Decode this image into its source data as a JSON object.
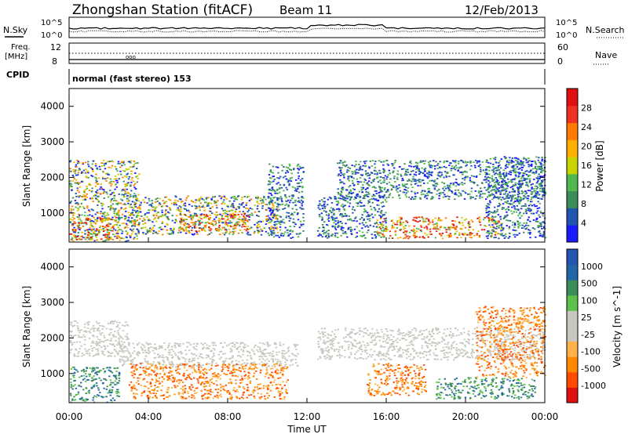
{
  "header": {
    "station": "Zhongshan Station (fitACF)",
    "beam": "Beam 11",
    "date": "12/Feb/2013"
  },
  "strips": {
    "nsky_label": "N.Sky",
    "nsearch_label": "N.Search",
    "log_top_label": "10^5",
    "log_bottom_label": "10^0",
    "freq_label_line1": "Freq.",
    "freq_label_line2": "[MHz]",
    "freq_ticks_left": [
      "12",
      "8"
    ],
    "nave_label": "Nave",
    "nave_ticks_right": [
      "60",
      "0"
    ],
    "cpid_label": "CPID",
    "cpid_value": "normal (fast stereo) 153"
  },
  "colors": {
    "power_scale": [
      "#1a1aff",
      "#2255b0",
      "#3c8c5a",
      "#4fb94f",
      "#c7d400",
      "#ffb000",
      "#ff7a00",
      "#f03020",
      "#e01010"
    ],
    "velocity_scale": [
      "#e01010",
      "#ff4a00",
      "#ff8a00",
      "#ffb24a",
      "#c8c8c0",
      "#c8c8c0",
      "#5cc24a",
      "#3c8c5a",
      "#2266aa",
      "#2255b0"
    ]
  },
  "chart_data": [
    {
      "type": "heatmap",
      "panel": "power",
      "ylabel": "Slant Range [km]",
      "xlabel": "Time UT",
      "x_ticks": [
        "00:00",
        "04:00",
        "08:00",
        "12:00",
        "16:00",
        "20:00",
        "00:00"
      ],
      "x_range_hours": [
        0,
        24
      ],
      "y_ticks": [
        "1000",
        "2000",
        "3000",
        "4000"
      ],
      "ylim": [
        180,
        4500
      ],
      "colorbar_label": "Power [dB]",
      "colorbar_ticks": [
        "4",
        "8",
        "12",
        "16",
        "20",
        "24",
        "28"
      ],
      "colorbar_range": [
        0,
        32
      ],
      "scatter_bands": [
        {
          "t_start": 0.0,
          "t_end": 3.5,
          "r_low": 200,
          "r_high": 2500,
          "level": "mixed"
        },
        {
          "t_start": 0.0,
          "t_end": 2.5,
          "r_low": 250,
          "r_high": 900,
          "level": "high"
        },
        {
          "t_start": 3.0,
          "t_end": 10.5,
          "r_low": 400,
          "r_high": 1500,
          "level": "mixed"
        },
        {
          "t_start": 5.5,
          "t_end": 9.0,
          "r_low": 500,
          "r_high": 1000,
          "level": "high"
        },
        {
          "t_start": 10.0,
          "t_end": 11.8,
          "r_low": 300,
          "r_high": 2400,
          "level": "low"
        },
        {
          "t_start": 12.5,
          "t_end": 16.0,
          "r_low": 300,
          "r_high": 1500,
          "level": "low"
        },
        {
          "t_start": 13.5,
          "t_end": 24.0,
          "r_low": 1400,
          "r_high": 2500,
          "level": "low"
        },
        {
          "t_start": 15.5,
          "t_end": 21.8,
          "r_low": 300,
          "r_high": 900,
          "level": "high"
        },
        {
          "t_start": 21.0,
          "t_end": 24.0,
          "r_low": 300,
          "r_high": 2600,
          "level": "low"
        }
      ]
    },
    {
      "type": "heatmap",
      "panel": "velocity",
      "ylabel": "Slant Range [km]",
      "xlabel": "Time UT",
      "x_ticks": [
        "00:00",
        "04:00",
        "08:00",
        "12:00",
        "16:00",
        "20:00",
        "00:00"
      ],
      "x_range_hours": [
        0,
        24
      ],
      "y_ticks": [
        "1000",
        "2000",
        "3000",
        "4000"
      ],
      "ylim": [
        180,
        4500
      ],
      "colorbar_label": "Velocity [m s^-1]",
      "colorbar_ticks": [
        "-1000",
        "-500",
        "-100",
        "-25",
        "25",
        "100",
        "500",
        "1000"
      ],
      "colorbar_range": [
        -1000,
        1000
      ],
      "scatter_bands": [
        {
          "t_start": 0.0,
          "t_end": 3.0,
          "r_low": 1500,
          "r_high": 2500,
          "level": "ground"
        },
        {
          "t_start": 0.0,
          "t_end": 2.5,
          "r_low": 200,
          "r_high": 1200,
          "level": "positive"
        },
        {
          "t_start": 2.5,
          "t_end": 11.5,
          "r_low": 1200,
          "r_high": 1900,
          "level": "ground"
        },
        {
          "t_start": 3.0,
          "t_end": 11.0,
          "r_low": 300,
          "r_high": 1300,
          "level": "negative"
        },
        {
          "t_start": 12.5,
          "t_end": 24.0,
          "r_low": 1400,
          "r_high": 2300,
          "level": "ground"
        },
        {
          "t_start": 15.0,
          "t_end": 18.0,
          "r_low": 400,
          "r_high": 1300,
          "level": "negative"
        },
        {
          "t_start": 18.5,
          "t_end": 23.5,
          "r_low": 300,
          "r_high": 900,
          "level": "positive"
        },
        {
          "t_start": 20.5,
          "t_end": 24.0,
          "r_low": 900,
          "r_high": 2900,
          "level": "negative"
        }
      ]
    }
  ]
}
